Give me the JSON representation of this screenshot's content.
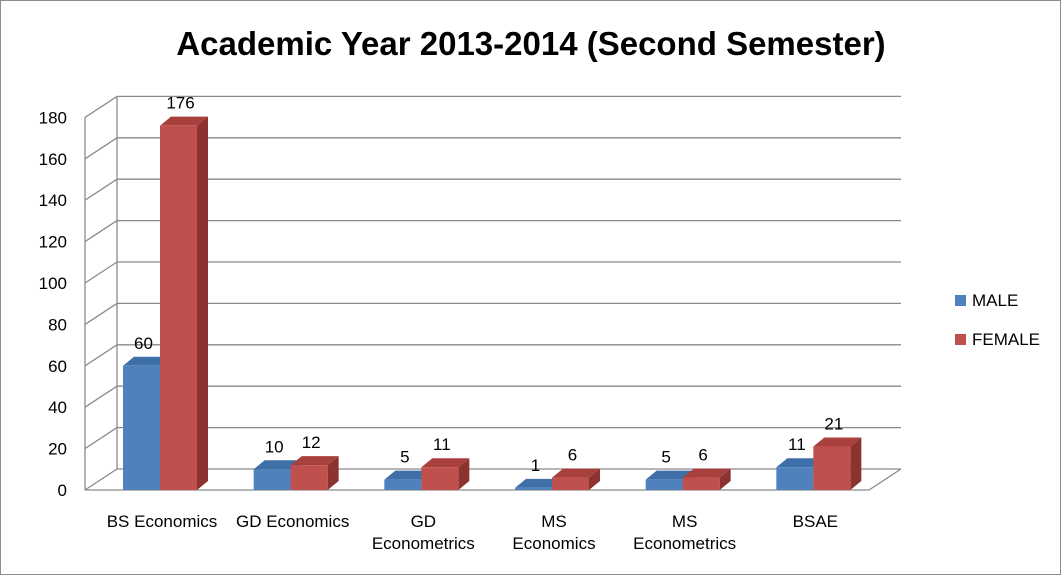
{
  "chart_data": {
    "type": "bar",
    "title": "Academic Year 2013-2014 (Second Semester)",
    "categories": [
      [
        "BS Economics"
      ],
      [
        "GD Economics"
      ],
      [
        "GD",
        "Econometrics"
      ],
      [
        "MS",
        "Economics"
      ],
      [
        "MS",
        "Econometrics"
      ],
      [
        "BSAE"
      ]
    ],
    "series": [
      {
        "name": "MALE",
        "values": [
          60,
          10,
          5,
          1,
          5,
          11
        ],
        "color": "#4f81bd",
        "side_color": "#385d8a",
        "top_color": "#3f6fa8"
      },
      {
        "name": "FEMALE",
        "values": [
          176,
          12,
          11,
          6,
          6,
          21
        ],
        "color": "#c0504d",
        "side_color": "#8c3330",
        "top_color": "#a8413e"
      }
    ],
    "yticks": [
      "0",
      "20",
      "40",
      "60",
      "80",
      "100",
      "120",
      "140",
      "160",
      "180"
    ],
    "ylim": [
      0,
      180
    ],
    "grid": true,
    "legend_position": "right"
  }
}
